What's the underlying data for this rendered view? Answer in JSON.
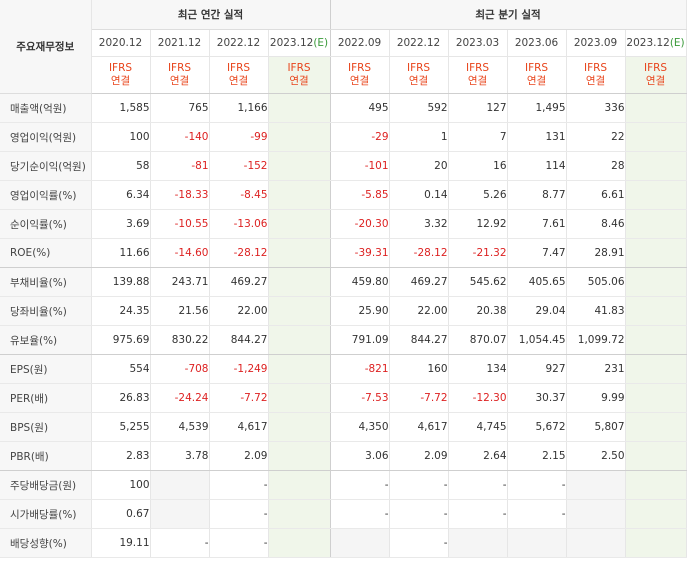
{
  "header": {
    "row_label": "주요재무정보",
    "annual_title": "최근 연간 실적",
    "quarterly_title": "최근 분기 실적"
  },
  "periods": [
    {
      "label": "2020.12",
      "estimate": false
    },
    {
      "label": "2021.12",
      "estimate": false
    },
    {
      "label": "2022.12",
      "estimate": false
    },
    {
      "label": "2023.12",
      "estimate": true,
      "estimate_mark": "(E)"
    },
    {
      "label": "2022.09",
      "estimate": false
    },
    {
      "label": "2022.12",
      "estimate": false
    },
    {
      "label": "2023.03",
      "estimate": false
    },
    {
      "label": "2023.06",
      "estimate": false
    },
    {
      "label": "2023.09",
      "estimate": false
    },
    {
      "label": "2023.12",
      "estimate": true,
      "estimate_mark": "(E)"
    }
  ],
  "basis": {
    "line1": "IFRS",
    "line2": "연결"
  },
  "rows": [
    {
      "label": "매출액(억원)",
      "values": [
        "1,585",
        "765",
        "1,166",
        "",
        "495",
        "592",
        "127",
        "1,495",
        "336",
        ""
      ]
    },
    {
      "label": "영업이익(억원)",
      "values": [
        "100",
        "-140",
        "-99",
        "",
        "-29",
        "1",
        "7",
        "131",
        "22",
        ""
      ]
    },
    {
      "label": "당기순이익(억원)",
      "values": [
        "58",
        "-81",
        "-152",
        "",
        "-101",
        "20",
        "16",
        "114",
        "28",
        ""
      ]
    },
    {
      "label": "영업이익률(%)",
      "values": [
        "6.34",
        "-18.33",
        "-8.45",
        "",
        "-5.85",
        "0.14",
        "5.26",
        "8.77",
        "6.61",
        ""
      ]
    },
    {
      "label": "순이익률(%)",
      "values": [
        "3.69",
        "-10.55",
        "-13.06",
        "",
        "-20.30",
        "3.32",
        "12.92",
        "7.61",
        "8.46",
        ""
      ]
    },
    {
      "label": "ROE(%)",
      "values": [
        "11.66",
        "-14.60",
        "-28.12",
        "",
        "-39.31",
        "-28.12",
        "-21.32",
        "7.47",
        "28.91",
        ""
      ]
    },
    {
      "label": "부채비율(%)",
      "values": [
        "139.88",
        "243.71",
        "469.27",
        "",
        "459.80",
        "469.27",
        "545.62",
        "405.65",
        "505.06",
        ""
      ]
    },
    {
      "label": "당좌비율(%)",
      "values": [
        "24.35",
        "21.56",
        "22.00",
        "",
        "25.90",
        "22.00",
        "20.38",
        "29.04",
        "41.83",
        ""
      ]
    },
    {
      "label": "유보율(%)",
      "values": [
        "975.69",
        "830.22",
        "844.27",
        "",
        "791.09",
        "844.27",
        "870.07",
        "1,054.45",
        "1,099.72",
        ""
      ]
    },
    {
      "label": "EPS(원)",
      "values": [
        "554",
        "-708",
        "-1,249",
        "",
        "-821",
        "160",
        "134",
        "927",
        "231",
        ""
      ]
    },
    {
      "label": "PER(배)",
      "values": [
        "26.83",
        "-24.24",
        "-7.72",
        "",
        "-7.53",
        "-7.72",
        "-12.30",
        "30.37",
        "9.99",
        ""
      ]
    },
    {
      "label": "BPS(원)",
      "values": [
        "5,255",
        "4,539",
        "4,617",
        "",
        "4,350",
        "4,617",
        "4,745",
        "5,672",
        "5,807",
        ""
      ]
    },
    {
      "label": "PBR(배)",
      "values": [
        "2.83",
        "3.78",
        "2.09",
        "",
        "3.06",
        "2.09",
        "2.64",
        "2.15",
        "2.50",
        ""
      ]
    },
    {
      "label": "주당배당금(원)",
      "values": [
        "100",
        "",
        "-",
        "",
        "-",
        "-",
        "-",
        "-",
        "",
        ""
      ]
    },
    {
      "label": "시가배당률(%)",
      "values": [
        "0.67",
        "",
        "-",
        "",
        "-",
        "-",
        "-",
        "-",
        "",
        ""
      ]
    },
    {
      "label": "배당성향(%)",
      "values": [
        "19.11",
        "-",
        "-",
        "",
        "",
        "-",
        "",
        "",
        "",
        ""
      ]
    }
  ],
  "colors": {
    "negative": "#dd2222",
    "basis_text": "#e8441b",
    "estimate_bg": "#f0f6ea",
    "estimate_mark": "#3a9a3a",
    "header_bg": "#f7f7f7"
  }
}
